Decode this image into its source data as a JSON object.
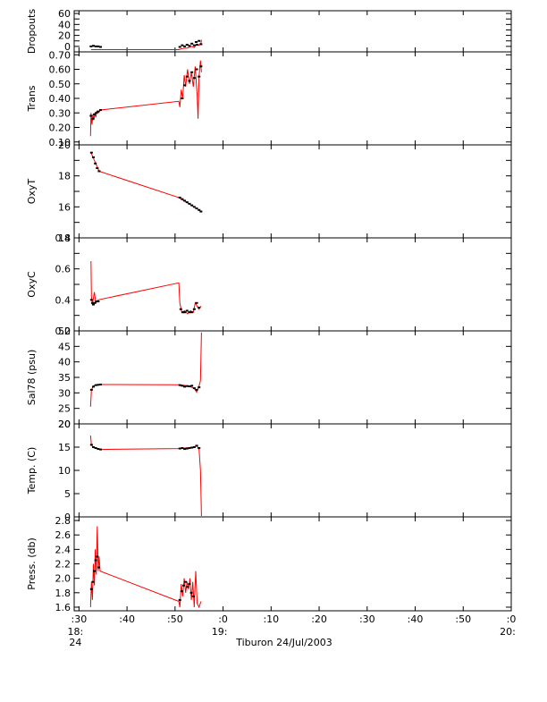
{
  "chart_data": {
    "type": "line",
    "xlabel": "Tiburon 24/Jul/2003",
    "line_color": "#ff0000",
    "point_color": "#000000",
    "x_ticks": [
      {
        "t": 30,
        "label": ":30"
      },
      {
        "t": 40,
        "label": ":40"
      },
      {
        "t": 50,
        "label": ":50"
      },
      {
        "t": 60,
        "label": ":0"
      },
      {
        "t": 70,
        "label": ":10"
      },
      {
        "t": 80,
        "label": ":20"
      },
      {
        "t": 90,
        "label": ":30"
      },
      {
        "t": 100,
        "label": ":40"
      },
      {
        "t": 110,
        "label": ":50"
      },
      {
        "t": 120,
        "label": ":0"
      }
    ],
    "x_range_minutes_after_18h": [
      29,
      120
    ],
    "hour_labels": [
      {
        "t": 30,
        "lines": [
          "18:",
          "24"
        ]
      },
      {
        "t": 60,
        "lines": [
          "19:"
        ]
      },
      {
        "t": 120,
        "lines": [
          "20:"
        ]
      }
    ],
    "panels": [
      {
        "name": "dropouts",
        "ylabel": "Dropouts",
        "ylim": [
          -10,
          65
        ],
        "ticks": [
          0,
          10,
          20,
          30,
          40,
          50,
          60
        ],
        "tick_labels": [
          "0",
          "",
          "20",
          "",
          "40",
          "",
          "60"
        ],
        "points": [
          [
            32.5,
            0
          ],
          [
            33.0,
            1
          ],
          [
            33.5,
            0
          ],
          [
            34.0,
            0
          ],
          [
            34.5,
            -1
          ],
          [
            51.0,
            -1
          ],
          [
            51.5,
            2
          ],
          [
            52.0,
            0
          ],
          [
            52.5,
            3
          ],
          [
            53.0,
            1
          ],
          [
            53.5,
            5
          ],
          [
            54.0,
            2
          ],
          [
            54.4,
            8
          ],
          [
            54.6,
            3
          ],
          [
            55.0,
            10
          ],
          [
            55.4,
            4
          ]
        ],
        "line": [
          [
            32.5,
            -6
          ],
          [
            34.6,
            -6
          ],
          [
            50.8,
            -6
          ],
          [
            51.5,
            -4
          ],
          [
            52.5,
            -3
          ],
          [
            53.5,
            0
          ],
          [
            54.0,
            -2
          ],
          [
            54.5,
            4
          ],
          [
            55.0,
            2
          ],
          [
            55.4,
            6
          ],
          [
            55.5,
            12
          ]
        ]
      },
      {
        "name": "trans",
        "ylabel": "Trans",
        "ylim": [
          0.08,
          0.72
        ],
        "ticks": [
          0.1,
          0.2,
          0.3,
          0.4,
          0.5,
          0.6,
          0.7
        ],
        "tick_labels": [
          "0.10",
          "0.20",
          "0.30",
          "0.40",
          "0.50",
          "0.60",
          "0.70"
        ],
        "points": [
          [
            32.5,
            0.28
          ],
          [
            32.9,
            0.26
          ],
          [
            33.2,
            0.29
          ],
          [
            33.6,
            0.3
          ],
          [
            34.0,
            0.31
          ],
          [
            34.5,
            0.32
          ],
          [
            51.5,
            0.4
          ],
          [
            52.0,
            0.49
          ],
          [
            52.5,
            0.55
          ],
          [
            53.0,
            0.52
          ],
          [
            53.5,
            0.58
          ],
          [
            54.0,
            0.54
          ],
          [
            54.5,
            0.6
          ],
          [
            55.0,
            0.55
          ],
          [
            55.4,
            0.62
          ]
        ],
        "line": [
          [
            32.4,
            0.14
          ],
          [
            32.5,
            0.3
          ],
          [
            32.7,
            0.22
          ],
          [
            32.9,
            0.29
          ],
          [
            33.1,
            0.25
          ],
          [
            33.3,
            0.3
          ],
          [
            33.5,
            0.27
          ],
          [
            33.7,
            0.31
          ],
          [
            34.0,
            0.3
          ],
          [
            34.5,
            0.32
          ],
          [
            50.8,
            0.38
          ],
          [
            51.0,
            0.34
          ],
          [
            51.3,
            0.46
          ],
          [
            51.6,
            0.4
          ],
          [
            51.9,
            0.56
          ],
          [
            52.2,
            0.48
          ],
          [
            52.6,
            0.6
          ],
          [
            53.0,
            0.5
          ],
          [
            53.4,
            0.58
          ],
          [
            53.8,
            0.48
          ],
          [
            54.2,
            0.62
          ],
          [
            54.6,
            0.42
          ],
          [
            54.8,
            0.26
          ],
          [
            55.0,
            0.55
          ],
          [
            55.3,
            0.66
          ],
          [
            55.5,
            0.58
          ]
        ]
      },
      {
        "name": "oxyt",
        "ylabel": "OxyT",
        "ylim": [
          14,
          20
        ],
        "ticks": [
          14,
          15,
          16,
          17,
          18,
          19,
          20
        ],
        "tick_labels": [
          "14",
          "",
          "16",
          "",
          "18",
          "",
          "20"
        ],
        "points": [
          [
            32.6,
            19.5
          ],
          [
            33.0,
            19.2
          ],
          [
            33.4,
            18.8
          ],
          [
            33.8,
            18.5
          ],
          [
            34.2,
            18.3
          ],
          [
            51.0,
            16.6
          ],
          [
            51.5,
            16.5
          ],
          [
            52.0,
            16.4
          ],
          [
            52.5,
            16.3
          ],
          [
            53.0,
            16.2
          ],
          [
            53.5,
            16.1
          ],
          [
            54.0,
            16.0
          ],
          [
            54.5,
            15.9
          ],
          [
            55.0,
            15.8
          ],
          [
            55.4,
            15.7
          ]
        ],
        "line": [
          [
            32.5,
            19.5
          ],
          [
            34.2,
            18.3
          ],
          [
            50.8,
            16.6
          ],
          [
            55.5,
            15.7
          ]
        ]
      },
      {
        "name": "oxyc",
        "ylabel": "OxyC",
        "ylim": [
          0.2,
          0.8
        ],
        "ticks": [
          0.2,
          0.3,
          0.4,
          0.5,
          0.6,
          0.7,
          0.8
        ],
        "tick_labels": [
          "0.2",
          "",
          "0.4",
          "",
          "0.6",
          "",
          "0.8"
        ],
        "points": [
          [
            32.6,
            0.4
          ],
          [
            32.8,
            0.38
          ],
          [
            33.0,
            0.37
          ],
          [
            33.3,
            0.38
          ],
          [
            33.6,
            0.39
          ],
          [
            34.0,
            0.39
          ],
          [
            51.2,
            0.34
          ],
          [
            51.6,
            0.32
          ],
          [
            52.0,
            0.32
          ],
          [
            52.5,
            0.33
          ],
          [
            53.0,
            0.32
          ],
          [
            53.5,
            0.32
          ],
          [
            54.0,
            0.34
          ],
          [
            54.5,
            0.38
          ],
          [
            55.0,
            0.35
          ]
        ],
        "line": [
          [
            32.5,
            0.65
          ],
          [
            32.6,
            0.42
          ],
          [
            32.8,
            0.37
          ],
          [
            33.2,
            0.45
          ],
          [
            33.5,
            0.38
          ],
          [
            34.0,
            0.4
          ],
          [
            50.8,
            0.51
          ],
          [
            51.0,
            0.38
          ],
          [
            51.4,
            0.32
          ],
          [
            52.0,
            0.33
          ],
          [
            52.6,
            0.31
          ],
          [
            53.2,
            0.33
          ],
          [
            53.8,
            0.32
          ],
          [
            54.2,
            0.38
          ],
          [
            54.6,
            0.36
          ],
          [
            55.0,
            0.34
          ],
          [
            55.4,
            0.36
          ]
        ]
      },
      {
        "name": "sal78",
        "ylabel": "Sal78 (psu)",
        "ylim": [
          20,
          50
        ],
        "ticks": [
          20,
          25,
          30,
          35,
          40,
          45,
          50
        ],
        "tick_labels": [
          "20",
          "25",
          "30",
          "35",
          "40",
          "45",
          "50"
        ],
        "points": [
          [
            32.6,
            31.0
          ],
          [
            33.0,
            32.0
          ],
          [
            33.5,
            32.5
          ],
          [
            34.0,
            32.6
          ],
          [
            34.5,
            32.7
          ],
          [
            51.0,
            32.5
          ],
          [
            51.5,
            32.3
          ],
          [
            52.0,
            32.0
          ],
          [
            52.5,
            32.2
          ],
          [
            53.0,
            32.1
          ],
          [
            53.5,
            32.3
          ],
          [
            54.0,
            31.5
          ],
          [
            54.5,
            31.0
          ],
          [
            55.0,
            31.8
          ]
        ],
        "line": [
          [
            32.4,
            25.5
          ],
          [
            32.6,
            31.0
          ],
          [
            33.0,
            32.3
          ],
          [
            34.5,
            32.7
          ],
          [
            50.8,
            32.6
          ],
          [
            52.0,
            32.4
          ],
          [
            53.0,
            32.1
          ],
          [
            54.0,
            31.5
          ],
          [
            54.5,
            30.2
          ],
          [
            55.0,
            32.2
          ],
          [
            55.3,
            34.0
          ],
          [
            55.5,
            49.5
          ]
        ]
      },
      {
        "name": "temp",
        "ylabel": "Temp. (C)",
        "ylim": [
          0,
          20
        ],
        "ticks": [
          0,
          5,
          10,
          15,
          20
        ],
        "tick_labels": [
          "0",
          "5",
          "10",
          "15",
          "20"
        ],
        "points": [
          [
            32.6,
            15.5
          ],
          [
            33.0,
            15.0
          ],
          [
            33.5,
            14.8
          ],
          [
            34.0,
            14.6
          ],
          [
            34.5,
            14.5
          ],
          [
            51.0,
            14.7
          ],
          [
            51.5,
            14.8
          ],
          [
            52.0,
            14.6
          ],
          [
            52.5,
            14.7
          ],
          [
            53.0,
            14.8
          ],
          [
            53.5,
            14.9
          ],
          [
            54.0,
            15.0
          ],
          [
            54.5,
            15.3
          ],
          [
            55.0,
            14.8
          ]
        ],
        "line": [
          [
            32.4,
            17.5
          ],
          [
            32.6,
            15.5
          ],
          [
            33.0,
            14.9
          ],
          [
            34.5,
            14.5
          ],
          [
            50.8,
            14.7
          ],
          [
            54.0,
            15.0
          ],
          [
            54.5,
            15.4
          ],
          [
            55.0,
            14.6
          ],
          [
            55.3,
            10.0
          ],
          [
            55.5,
            0.2
          ]
        ]
      },
      {
        "name": "press",
        "ylabel": "Press. (db)",
        "ylim": [
          1.55,
          2.85
        ],
        "ticks": [
          1.6,
          1.8,
          2.0,
          2.2,
          2.4,
          2.6,
          2.8
        ],
        "tick_labels": [
          "1.6",
          "1.8",
          "2.0",
          "2.2",
          "2.4",
          "2.6",
          "2.8"
        ],
        "points": [
          [
            32.6,
            1.85
          ],
          [
            32.9,
            1.95
          ],
          [
            33.2,
            2.1
          ],
          [
            33.5,
            2.25
          ],
          [
            33.8,
            2.3
          ],
          [
            34.1,
            2.15
          ],
          [
            51.0,
            1.7
          ],
          [
            51.4,
            1.82
          ],
          [
            51.8,
            1.9
          ],
          [
            52.2,
            1.95
          ],
          [
            52.6,
            1.88
          ],
          [
            53.0,
            1.92
          ],
          [
            53.4,
            1.8
          ],
          [
            53.8,
            1.75
          ]
        ],
        "line": [
          [
            32.4,
            1.6
          ],
          [
            32.6,
            1.95
          ],
          [
            32.8,
            1.7
          ],
          [
            33.0,
            2.2
          ],
          [
            33.2,
            1.9
          ],
          [
            33.4,
            2.4
          ],
          [
            33.6,
            2.05
          ],
          [
            33.8,
            2.72
          ],
          [
            34.0,
            2.1
          ],
          [
            34.2,
            2.3
          ],
          [
            34.4,
            2.1
          ],
          [
            50.8,
            1.68
          ],
          [
            51.0,
            1.6
          ],
          [
            51.3,
            1.92
          ],
          [
            51.6,
            1.75
          ],
          [
            51.9,
            2.0
          ],
          [
            52.2,
            1.8
          ],
          [
            52.5,
            1.95
          ],
          [
            52.8,
            1.85
          ],
          [
            53.1,
            2.0
          ],
          [
            53.4,
            1.7
          ],
          [
            53.7,
            1.95
          ],
          [
            54.0,
            1.6
          ],
          [
            54.3,
            2.1
          ],
          [
            54.6,
            1.65
          ],
          [
            55.0,
            1.6
          ],
          [
            55.4,
            1.68
          ]
        ]
      }
    ]
  }
}
